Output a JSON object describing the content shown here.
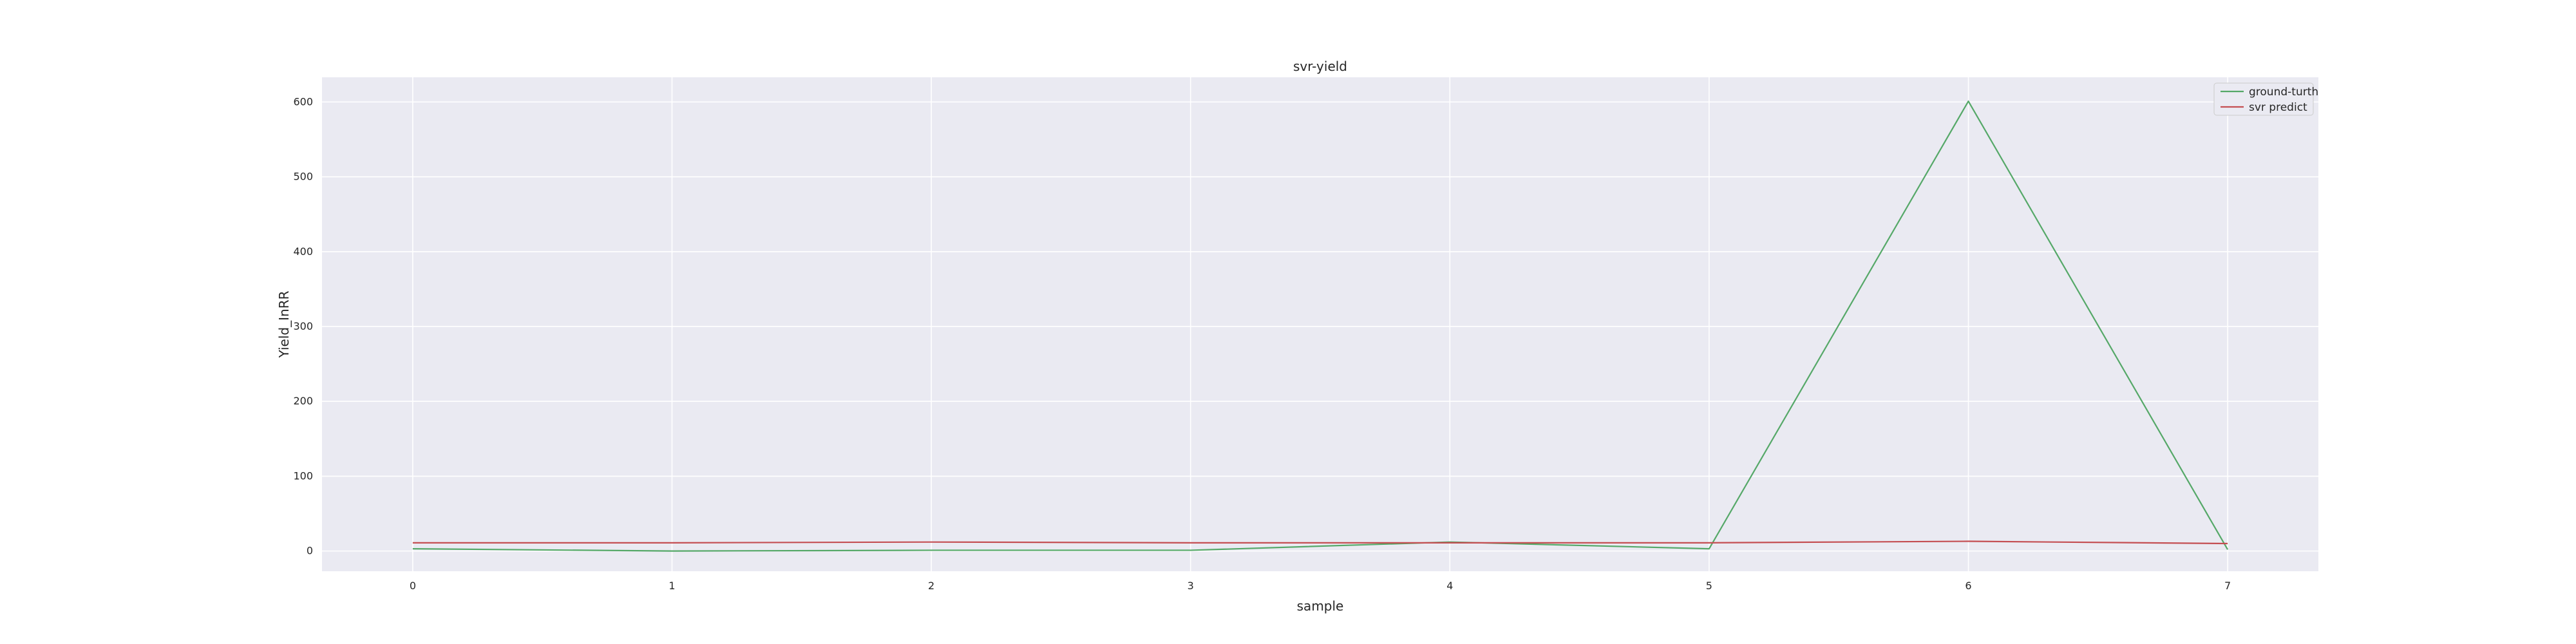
{
  "chart_data": {
    "type": "line",
    "title": "svr-yield",
    "xlabel": "sample",
    "ylabel": "Yield_InRR",
    "x": [
      0,
      1,
      2,
      3,
      4,
      5,
      6,
      7
    ],
    "xlim": [
      -0.35,
      7.35
    ],
    "ylim": [
      -27,
      633
    ],
    "xticks": [
      0,
      1,
      2,
      3,
      4,
      5,
      6,
      7
    ],
    "yticks": [
      0,
      100,
      200,
      300,
      400,
      500,
      600
    ],
    "grid": true,
    "legend_position": "top-right",
    "series": [
      {
        "name": "ground-turth",
        "color": "#55a868",
        "values": [
          3,
          0,
          1,
          1,
          12,
          3,
          601,
          2
        ]
      },
      {
        "name": "svr predict",
        "color": "#c44e52",
        "values": [
          11,
          11,
          12,
          11,
          11,
          11,
          13,
          10
        ]
      }
    ],
    "colors": {
      "plot_background": "#eaeaf2",
      "grid": "#ffffff",
      "text": "#262626"
    }
  }
}
